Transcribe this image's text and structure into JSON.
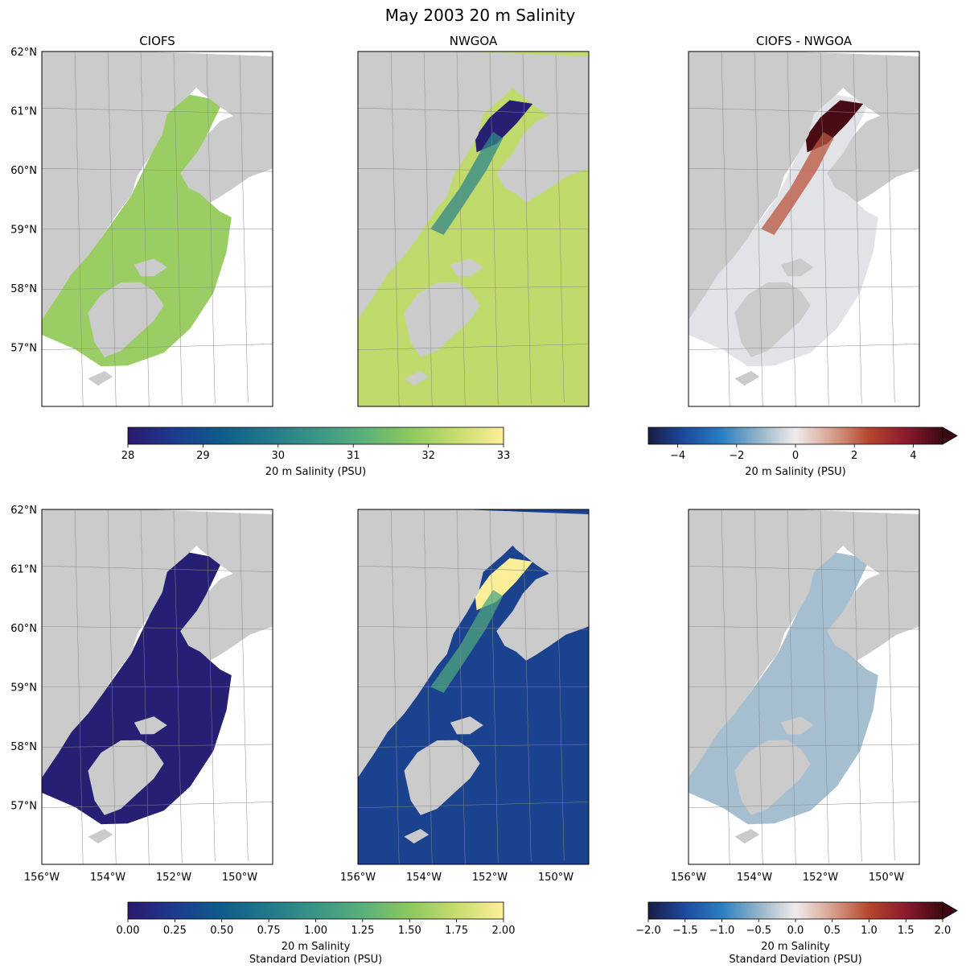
{
  "title": "May 2003 20 m Salinity",
  "panel_titles": [
    "CIOFS",
    "NWGOA",
    "CIOFS - NWGOA"
  ],
  "lat_ticks": [
    "62°N",
    "61°N",
    "60°N",
    "59°N",
    "58°N",
    "57°N"
  ],
  "lon_ticks": [
    "156°W",
    "154°W",
    "152°W",
    "150°W"
  ],
  "colors": {
    "land": "#cbcbcb",
    "gridline": "#888888",
    "haline": [
      "#2a186c",
      "#1d3b8f",
      "#0e5c8a",
      "#23788a",
      "#3a9587",
      "#59b07a",
      "#8cc85f",
      "#c7dc6e",
      "#fdef9a"
    ],
    "balance": [
      "#181c43",
      "#1d4aa0",
      "#2a7fc0",
      "#93b4c9",
      "#f1ecec",
      "#d7a08e",
      "#b6452d",
      "#8b1a2d",
      "#3c0911"
    ]
  },
  "chart_data": [
    {
      "type": "heatmap",
      "title": "CIOFS",
      "row": 1,
      "variable": "20 m Salinity",
      "units": "PSU",
      "lat_range": [
        56.0,
        62.0
      ],
      "lon_range": [
        -156.0,
        -149.0
      ],
      "colorbar_range": [
        28,
        33
      ],
      "typical_value": 31.9
    },
    {
      "type": "heatmap",
      "title": "NWGOA",
      "row": 1,
      "variable": "20 m Salinity",
      "units": "PSU",
      "lat_range": [
        56.0,
        62.0
      ],
      "lon_range": [
        -156.0,
        -149.0
      ],
      "colorbar_range": [
        28,
        33
      ],
      "typical_value": 32.3,
      "upper_inlet_value": 28.1
    },
    {
      "type": "heatmap",
      "title": "CIOFS - NWGOA",
      "row": 1,
      "variable": "20 m Salinity difference",
      "units": "PSU",
      "lat_range": [
        56.0,
        62.0
      ],
      "lon_range": [
        -156.0,
        -149.0
      ],
      "colorbar_range": [
        -5,
        5
      ],
      "colorbar_extend": "max",
      "typical_value": -0.2,
      "upper_inlet_value": 4.8
    },
    {
      "type": "heatmap",
      "row": 2,
      "variable": "20 m Salinity Standard Deviation",
      "units": "PSU",
      "lat_range": [
        56.0,
        62.0
      ],
      "lon_range": [
        -156.0,
        -149.0
      ],
      "colorbar_range": [
        0,
        2
      ],
      "typical_value": 0.05
    },
    {
      "type": "heatmap",
      "row": 2,
      "variable": "20 m Salinity Standard Deviation",
      "units": "PSU",
      "lat_range": [
        56.0,
        62.0
      ],
      "lon_range": [
        -156.0,
        -149.0
      ],
      "colorbar_range": [
        0,
        2
      ],
      "typical_value": 0.3,
      "upper_inlet_value": 2.0
    },
    {
      "type": "heatmap",
      "row": 2,
      "variable": "20 m Salinity Standard Deviation difference",
      "units": "PSU",
      "lat_range": [
        56.0,
        62.0
      ],
      "lon_range": [
        -156.0,
        -149.0
      ],
      "colorbar_range": [
        -2,
        2
      ],
      "colorbar_extend": "max",
      "typical_value": -0.4
    }
  ],
  "colorbars": [
    {
      "id": "cb-sal",
      "cmap": "haline",
      "range": [
        28,
        33
      ],
      "ticks": [
        "28",
        "29",
        "30",
        "31",
        "32",
        "33"
      ],
      "label_lines": [
        "20 m Salinity (PSU)"
      ],
      "extend": "neither"
    },
    {
      "id": "cb-saldiff",
      "cmap": "balance",
      "range": [
        -5,
        5
      ],
      "ticks": [
        "−4",
        "−2",
        "0",
        "2",
        "4"
      ],
      "tick_values": [
        -4,
        -2,
        0,
        2,
        4
      ],
      "label_lines": [
        "20 m Salinity (PSU)"
      ],
      "extend": "max"
    },
    {
      "id": "cb-std",
      "cmap": "haline",
      "range": [
        0,
        2
      ],
      "ticks": [
        "0.00",
        "0.25",
        "0.50",
        "0.75",
        "1.00",
        "1.25",
        "1.50",
        "1.75",
        "2.00"
      ],
      "label_lines": [
        "20 m Salinity",
        "Standard Deviation (PSU)"
      ],
      "extend": "neither"
    },
    {
      "id": "cb-stddiff",
      "cmap": "balance",
      "range": [
        -2,
        2
      ],
      "ticks": [
        "−2.0",
        "−1.5",
        "−1.0",
        "−0.5",
        "0.0",
        "0.5",
        "1.0",
        "1.5",
        "2.0"
      ],
      "label_lines": [
        "20 m Salinity",
        "Standard Deviation (PSU)"
      ],
      "extend": "max"
    }
  ]
}
